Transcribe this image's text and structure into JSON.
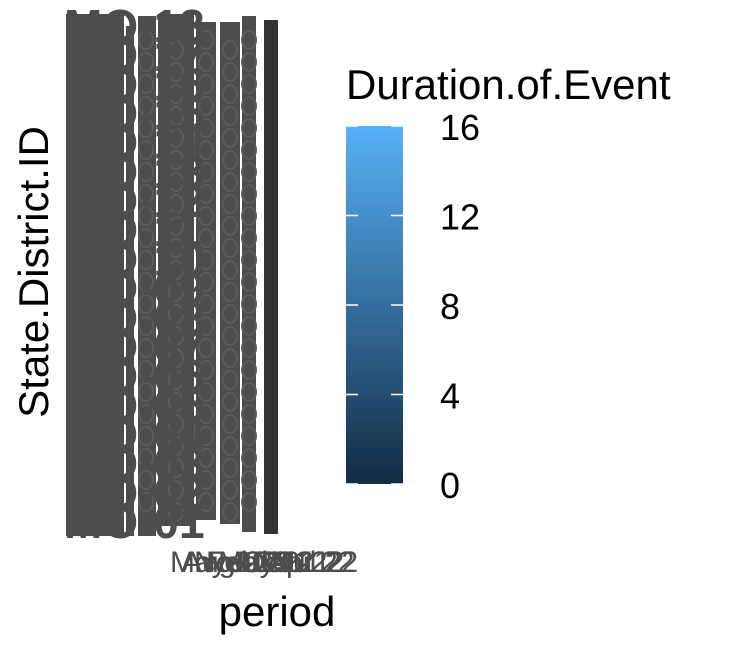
{
  "chart_data": {
    "type": "heatmap",
    "xlabel": "period",
    "ylabel": "State.District.ID",
    "x_tick_labels": [
      "May 20",
      "Aug 20",
      "Nov 20",
      "Feb 21",
      "May 21",
      "Jul 21",
      "Oct 21",
      "Jan 22",
      "Apr 22",
      "Jul 22"
    ],
    "y_tick_labels": [
      "MO-01",
      "MO-02",
      "MO-03",
      "MO-04",
      "MO-05",
      "MO-06",
      "MO-07",
      "MO-08",
      "MO-09",
      "MO-10",
      "MO-11",
      "MO-12",
      "MO-13",
      "MO-14",
      "MO-15",
      "MO-16",
      "MO-17",
      "MO-18"
    ],
    "legend": {
      "title": "Duration.of.Event",
      "min": 0,
      "max": 16,
      "ticks": [
        0,
        4,
        8,
        12,
        16
      ],
      "low_color": "#132B43",
      "high_color": "#56B1F7",
      "placement": "right"
    },
    "overplot_color": "#4d4d4d",
    "bar_color": "#333333",
    "grid": false
  }
}
